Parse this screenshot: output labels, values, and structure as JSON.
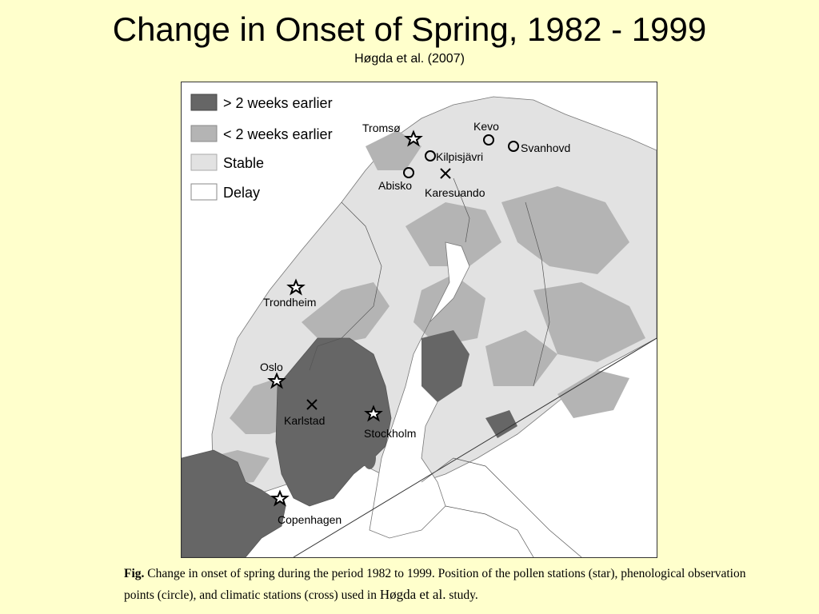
{
  "slide": {
    "title": "Change in Onset of Spring, 1982 - 1999",
    "subtitle": "Høgda et al. (2007)"
  },
  "map": {
    "legend": [
      {
        "label": "> 2 weeks earlier",
        "color": "#666666"
      },
      {
        "label": "< 2 weeks earlier",
        "color": "#b4b4b4"
      },
      {
        "label": "Stable",
        "color": "#e2e2e2"
      },
      {
        "label": "Delay",
        "color": "#ffffff"
      }
    ],
    "stations": [
      {
        "name": "Tromsø",
        "type": "star"
      },
      {
        "name": "Kevo",
        "type": "circle"
      },
      {
        "name": "Kilpisjävri",
        "type": "circle"
      },
      {
        "name": "Svanhovd",
        "type": "circle"
      },
      {
        "name": "Abisko",
        "type": "circle"
      },
      {
        "name": "Karesuando",
        "type": "cross"
      },
      {
        "name": "Trondheim",
        "type": "star"
      },
      {
        "name": "Oslo",
        "type": "star"
      },
      {
        "name": "Karlstad",
        "type": "cross"
      },
      {
        "name": "Stockholm",
        "type": "star"
      },
      {
        "name": "Copenhagen",
        "type": "star"
      }
    ]
  },
  "caption": {
    "fig_label": "Fig.",
    "text_part1": " Change in onset of spring during the period 1982 to 1999. Position of the pollen stations (star), phenological observation points (circle), and climatic stations (cross) used in ",
    "author": "Høgda et al.",
    "text_part2": " study."
  }
}
